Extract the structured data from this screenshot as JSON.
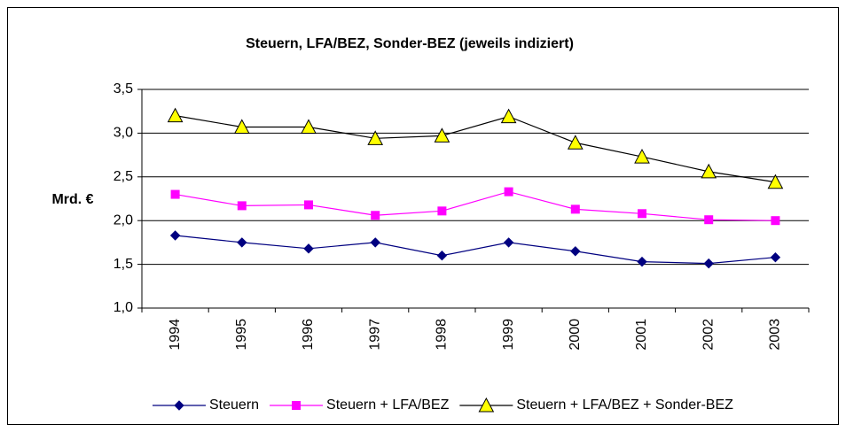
{
  "chart_data": {
    "type": "line",
    "title": "Steuern, LFA/BEZ, Sonder-BEZ (jeweils indiziert)",
    "y_label": "Mrd. €",
    "categories": [
      "1994",
      "1995",
      "1996",
      "1997",
      "1998",
      "1999",
      "2000",
      "2001",
      "2002",
      "2003"
    ],
    "series": [
      {
        "name": "Steuern",
        "color": "#000080",
        "marker": "diamond",
        "values": [
          1.83,
          1.75,
          1.68,
          1.75,
          1.6,
          1.75,
          1.65,
          1.53,
          1.51,
          1.58
        ]
      },
      {
        "name": "Steuern + LFA/BEZ",
        "color": "#ff00ff",
        "marker": "square",
        "values": [
          2.3,
          2.17,
          2.18,
          2.06,
          2.11,
          2.33,
          2.13,
          2.08,
          2.01,
          2.0
        ]
      },
      {
        "name": "Steuern + LFA/BEZ + Sonder-BEZ",
        "color": "#000000",
        "marker": "triangle",
        "marker_fill": "#ffff00",
        "values": [
          3.2,
          3.07,
          3.07,
          2.94,
          2.97,
          3.19,
          2.89,
          2.73,
          2.56,
          2.44
        ]
      }
    ],
    "ylim": [
      1,
      3.5
    ],
    "yticks": [
      {
        "value": 1,
        "label": "1,0"
      },
      {
        "value": 1.5,
        "label": "1,5"
      },
      {
        "value": 2,
        "label": "2,0"
      },
      {
        "value": 2.5,
        "label": "2,5"
      },
      {
        "value": 3,
        "label": "3,0"
      },
      {
        "value": 3.5,
        "label": "3,5"
      }
    ],
    "grid": true,
    "legend": "bottom"
  }
}
